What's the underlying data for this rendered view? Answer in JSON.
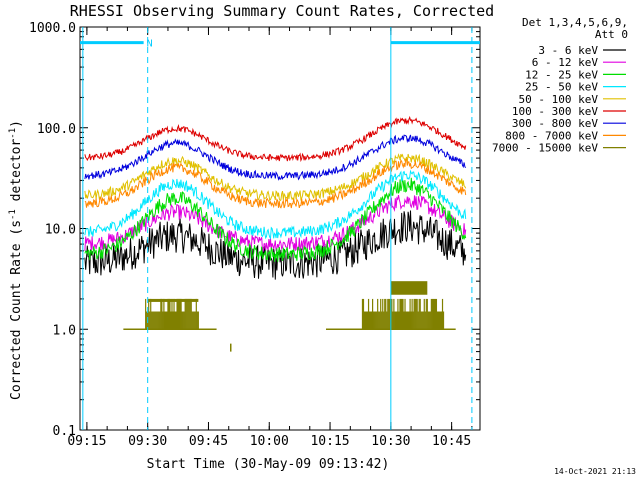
{
  "chart_data": {
    "type": "line",
    "title": "RHESSI Observing Summary Count Rates, Corrected",
    "xlabel": "Start Time (30-May-09 09:13:42)",
    "ylabel_main": "Corrected Count Rate (s",
    "ylabel_sup1": "-1",
    "ylabel_mid": " detector",
    "ylabel_sup2": "-1",
    "ylabel_end": ")",
    "yscale": "log",
    "ylim": [
      0.1,
      1000
    ],
    "xlim_minutes": [
      -1.7,
      97
    ],
    "x_tick_labels": [
      "09:15",
      "09:30",
      "09:45",
      "10:00",
      "10:15",
      "10:30",
      "10:45"
    ],
    "x_tick_minutes": [
      0,
      15,
      30,
      45,
      60,
      75,
      90
    ],
    "y_tick_labels": [
      "0.1",
      "1.0",
      "10.0",
      "100.0",
      "1000.0"
    ],
    "y_tick_values": [
      0.1,
      1,
      10,
      100,
      1000
    ],
    "legend_header": [
      "Det 1,3,4,5,6,9,",
      "Att 0"
    ],
    "series": [
      {
        "name": "3 - 6 keV",
        "color": "#000000",
        "base": 4.5,
        "peak1": 8.5,
        "peak2": 10.5,
        "noise": 0.18
      },
      {
        "name": "6 - 12 keV",
        "color": "#e000e0",
        "base": 7.0,
        "peak1": 14.5,
        "peak2": 19.0,
        "noise": 0.08
      },
      {
        "name": "12 - 25 keV",
        "color": "#00dd00",
        "base": 5.5,
        "peak1": 20.0,
        "peak2": 27.0,
        "noise": 0.08
      },
      {
        "name": "25 - 50 keV",
        "color": "#00e8ff",
        "base": 9.0,
        "peak1": 28.0,
        "peak2": 34.0,
        "noise": 0.06
      },
      {
        "name": "50 - 100 keV",
        "color": "#e0c000",
        "base": 21.0,
        "peak1": 47.0,
        "peak2": 50.0,
        "noise": 0.05
      },
      {
        "name": "100 - 300 keV",
        "color": "#dd0000",
        "base": 50.0,
        "peak1": 98.0,
        "peak2": 118.0,
        "noise": 0.035
      },
      {
        "name": "300 - 800 keV",
        "color": "#0000dd",
        "base": 33.0,
        "peak1": 70.0,
        "peak2": 79.0,
        "noise": 0.04
      },
      {
        "name": "800 - 7000 keV",
        "color": "#ff8800",
        "base": 17.5,
        "peak1": 40.0,
        "peak2": 44.0,
        "noise": 0.05
      },
      {
        "name": "7000 - 15000 keV",
        "color": "#808000",
        "base": 0,
        "peak1": 0,
        "peak2": 0,
        "noise": 0
      }
    ],
    "flag_bar": {
      "label": "N",
      "color": "#00ccff",
      "level": 700,
      "segments_minutes": [
        [
          -1.7,
          14
        ],
        [
          75,
          97
        ]
      ]
    },
    "vertical_markers": [
      {
        "minute": -1.0,
        "style": "solid",
        "color": "#00ccff"
      },
      {
        "minute": 15.0,
        "style": "dashed",
        "color": "#00ccff"
      },
      {
        "minute": 75.0,
        "style": "solid",
        "color": "#00ccff"
      },
      {
        "minute": 95.0,
        "style": "dashed",
        "color": "#00ccff"
      }
    ]
  },
  "timestamp": "14-Oct-2021 21:13"
}
